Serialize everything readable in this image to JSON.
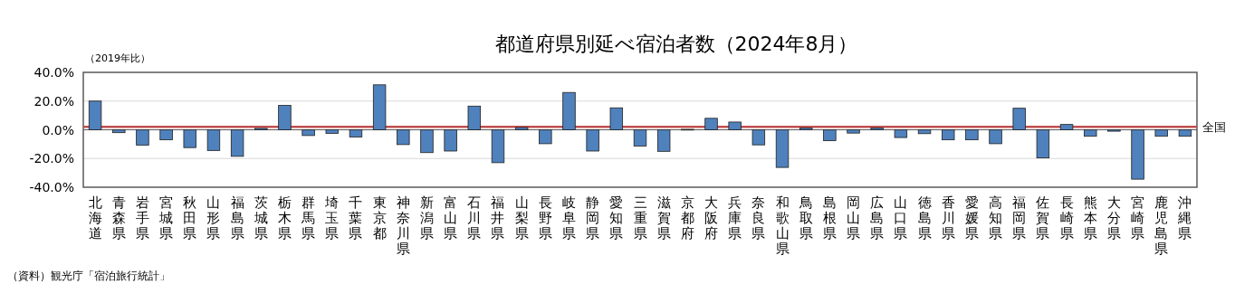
{
  "chart_data": {
    "type": "bar",
    "title": "都道府県別延べ宿泊者数（2024年8月）",
    "ylabel": "（2019年比）",
    "categories": [
      "北海道",
      "青森県",
      "岩手県",
      "宮城県",
      "秋田県",
      "山形県",
      "福島県",
      "茨城県",
      "栃木県",
      "群馬県",
      "埼玉県",
      "千葉県",
      "東京都",
      "神奈川県",
      "新潟県",
      "富山県",
      "石川県",
      "福井県",
      "山梨県",
      "長野県",
      "岐阜県",
      "静岡県",
      "愛知県",
      "三重県",
      "滋賀県",
      "京都府",
      "大阪府",
      "兵庫県",
      "奈良県",
      "和歌山県",
      "鳥取県",
      "島根県",
      "岡山県",
      "広島県",
      "山口県",
      "徳島県",
      "香川県",
      "愛媛県",
      "高知県",
      "福岡県",
      "佐賀県",
      "長崎県",
      "熊本県",
      "大分県",
      "宮崎県",
      "鹿児島県",
      "沖縄県"
    ],
    "values": [
      20,
      -2,
      -10.7,
      -7,
      -12.4,
      -14.4,
      -18.5,
      1,
      17,
      -4,
      -2.5,
      -5,
      31.3,
      -10.3,
      -15.9,
      -14.8,
      16.5,
      -22.9,
      1.6,
      -9.7,
      26,
      -14.8,
      15.3,
      -11.3,
      -15,
      0.3,
      8,
      5.4,
      -10.5,
      -26.2,
      1.2,
      -7.6,
      -2.3,
      1.2,
      -5.4,
      -2.7,
      -7,
      -7,
      -9.7,
      15,
      -19.6,
      3.7,
      -4.5,
      -1,
      -34.4,
      -4.5,
      -4.5
    ],
    "color": "#4f81bd",
    "ylim": [
      -40,
      40
    ],
    "yticks": [
      {
        "value": -40,
        "label": "-40.0%"
      },
      {
        "value": -20,
        "label": "-20.0%"
      },
      {
        "value": 0,
        "label": "0.0%"
      },
      {
        "value": 20,
        "label": "20.0%"
      },
      {
        "value": 40,
        "label": "40.0%"
      }
    ],
    "grid": "y",
    "ref_lines": [
      {
        "axis": "y",
        "value": 2.1,
        "label": "全国",
        "color": "#c0504d"
      }
    ],
    "annotations": [
      "（資料）観光庁「宿泊旅行統計」"
    ]
  }
}
